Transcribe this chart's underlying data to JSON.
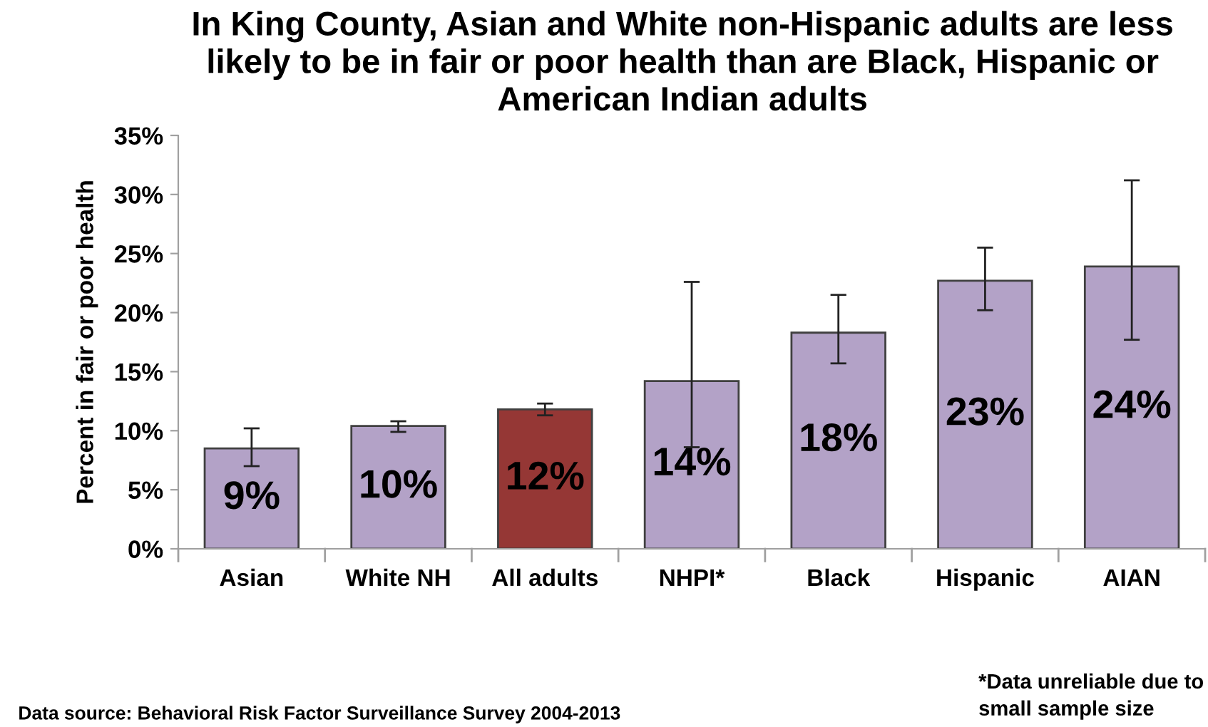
{
  "chart_data": {
    "type": "bar",
    "title": "In King County, Asian and White non-Hispanic adults are less likely to be in fair or poor health than are Black, Hispanic or American Indian adults",
    "ylabel": "Percent in fair or poor health",
    "categories": [
      "Asian",
      "White NH",
      "All adults",
      "NHPI*",
      "Black",
      "Hispanic",
      "AIAN"
    ],
    "values": [
      8.5,
      10.4,
      11.8,
      14.2,
      18.3,
      22.7,
      23.9
    ],
    "colors": [
      "#b3a2c7",
      "#b3a2c7",
      "#953735",
      "#b3a2c7",
      "#b3a2c7",
      "#b3a2c7",
      "#b3a2c7"
    ],
    "errors": [
      [
        7.0,
        10.2
      ],
      [
        9.9,
        10.8
      ],
      [
        11.3,
        12.3
      ],
      [
        8.6,
        22.6
      ],
      [
        15.7,
        21.5
      ],
      [
        20.2,
        25.5
      ],
      [
        17.7,
        31.2
      ]
    ],
    "value_labels": [
      "9%",
      "10%",
      "12%",
      "14%",
      "18%",
      "23%",
      "24%"
    ],
    "ylim": [
      0,
      35
    ],
    "yticks": [
      {
        "value": 0,
        "label": "0%"
      },
      {
        "value": 5,
        "label": "5%"
      },
      {
        "value": 10,
        "label": "10%"
      },
      {
        "value": 15,
        "label": "15%"
      },
      {
        "value": 20,
        "label": "20%"
      },
      {
        "value": 25,
        "label": "25%"
      },
      {
        "value": 30,
        "label": "30%"
      },
      {
        "value": 35,
        "label": "35%"
      }
    ],
    "grid": false,
    "legend": false,
    "annotations": [
      "Data source: Behavioral Risk Factor Surveillance Survey 2004-2013",
      "*Data unreliable due to small sample size"
    ]
  }
}
